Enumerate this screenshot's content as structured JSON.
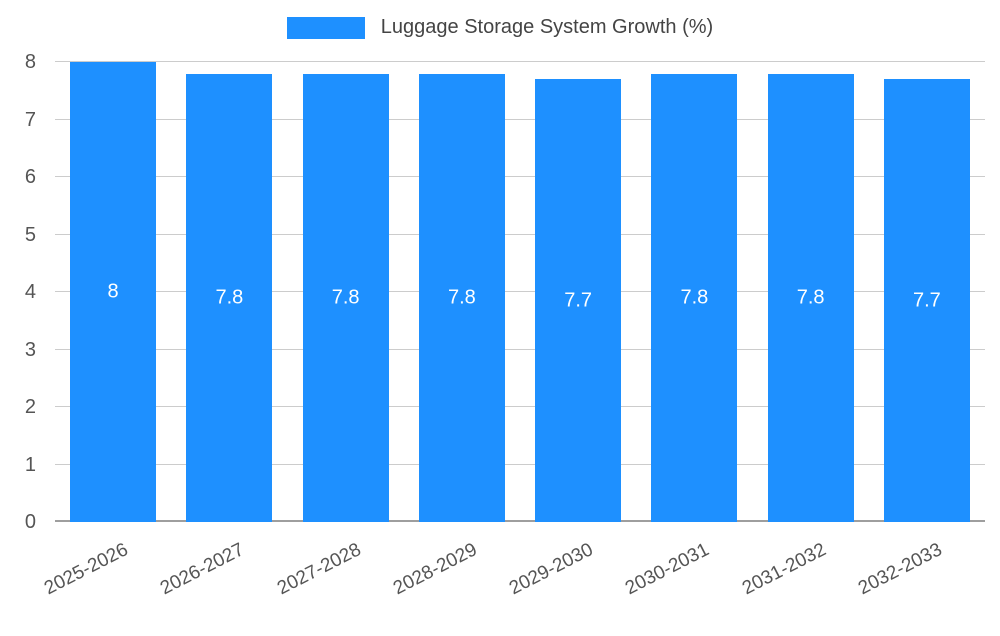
{
  "legend": {
    "label": "Luggage Storage System Growth (%)",
    "swatch_color": "#1e90ff"
  },
  "chart_data": {
    "type": "bar",
    "title": "Luggage Storage System Growth (%)",
    "categories": [
      "2025-2026",
      "2026-2027",
      "2027-2028",
      "2028-2029",
      "2029-2030",
      "2030-2031",
      "2031-2032",
      "2032-2033"
    ],
    "values": [
      8,
      7.8,
      7.8,
      7.8,
      7.7,
      7.8,
      7.8,
      7.7
    ],
    "value_labels": [
      "8",
      "7.8",
      "7.8",
      "7.8",
      "7.7",
      "7.8",
      "7.8",
      "7.7"
    ],
    "bar_color": "#1e90ff",
    "value_label_color": "#ffffff",
    "xlabel": "",
    "ylabel": "",
    "ylim": [
      0,
      8
    ],
    "yticks": [
      0,
      1,
      2,
      3,
      4,
      5,
      6,
      7,
      8
    ],
    "grid": true,
    "legend_position": "top"
  }
}
